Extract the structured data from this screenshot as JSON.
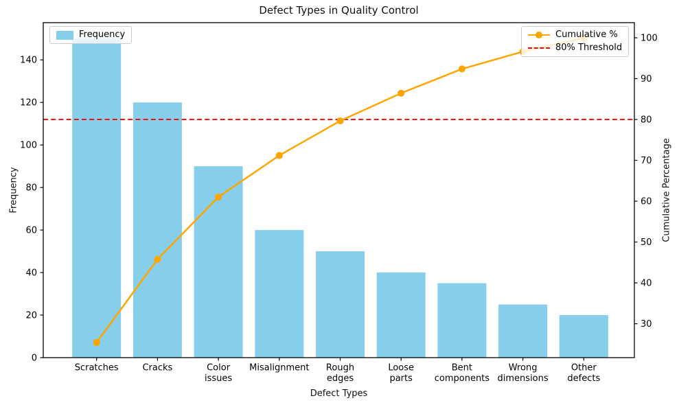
{
  "chart_data": {
    "type": "bar+line (Pareto)",
    "title": "Defect Types in Quality Control",
    "xlabel": "Defect Types",
    "categories": [
      "Scratches",
      "Cracks",
      "Color\nissues",
      "Misalignment",
      "Rough\nedges",
      "Loose\nparts",
      "Bent\ncomponents",
      "Wrong\ndimensions",
      "Other\ndefects"
    ],
    "series": [
      {
        "name": "Frequency",
        "type": "bar",
        "axis": "left",
        "color": "#87CEEB",
        "values": [
          150,
          120,
          90,
          60,
          50,
          40,
          35,
          25,
          20
        ]
      },
      {
        "name": "Cumulative %",
        "type": "line",
        "axis": "right",
        "color": "#FFA500",
        "marker": "circle",
        "values": [
          25.42,
          45.76,
          61.02,
          71.19,
          79.66,
          86.44,
          92.37,
          96.61,
          100.0
        ]
      }
    ],
    "threshold": {
      "name": "80% Threshold",
      "value": 80,
      "color": "#FF0000",
      "style": "dashed",
      "axis": "right"
    },
    "axes": {
      "left": {
        "label": "Frequency",
        "ticks": [
          0,
          20,
          40,
          60,
          80,
          100,
          120,
          140
        ],
        "lim": [
          0,
          157.5
        ]
      },
      "right": {
        "label": "Cumulative Percentage",
        "ticks": [
          30,
          40,
          50,
          60,
          70,
          80,
          90,
          100
        ],
        "lim": [
          21.7,
          103.7
        ]
      }
    },
    "grid": false,
    "legend_positions": {
      "frequency": "upper left",
      "cumulative": "upper right"
    }
  }
}
